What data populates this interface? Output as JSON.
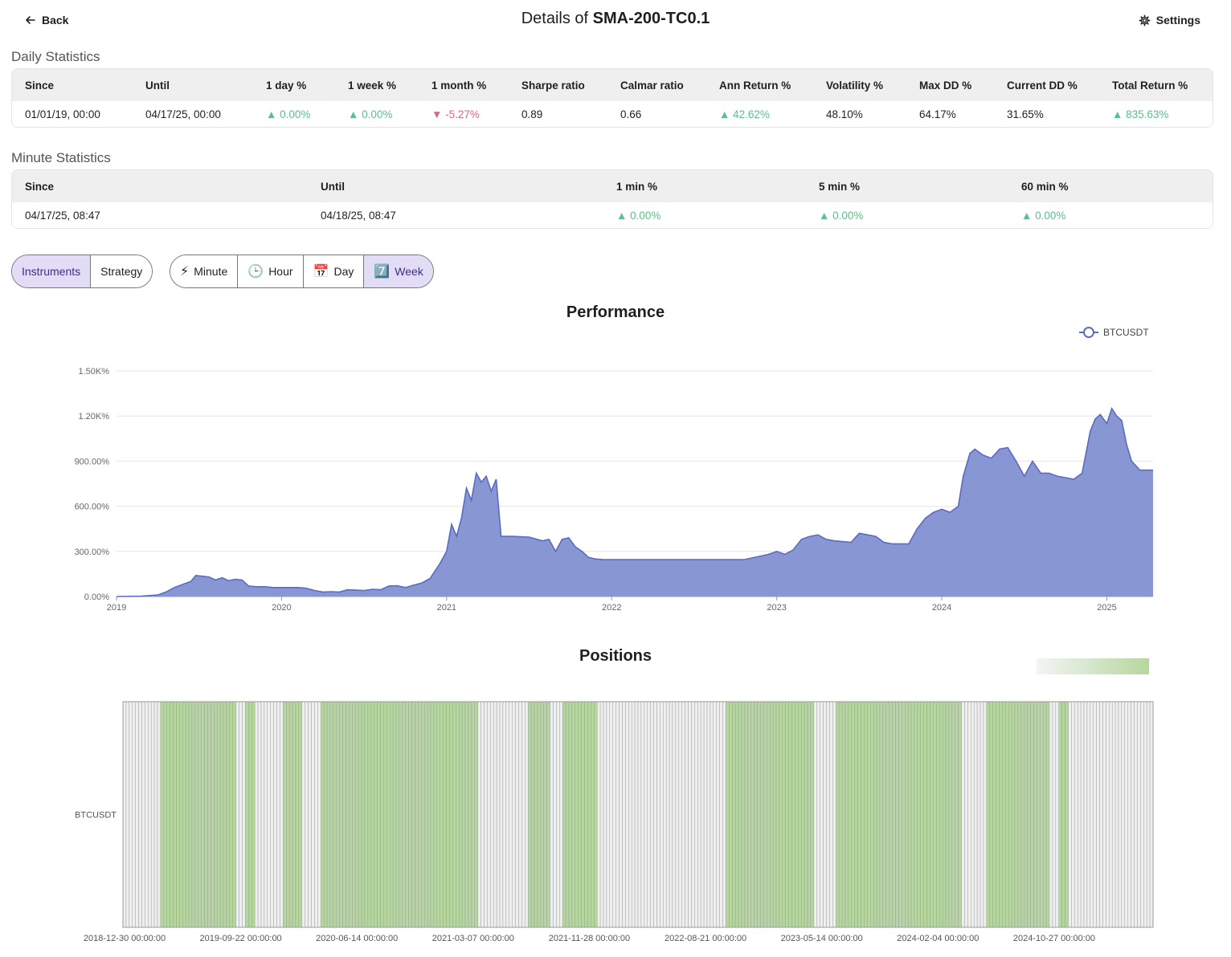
{
  "header": {
    "back_label": "Back",
    "title_prefix": "Details of",
    "title_name": "SMA-200-TC0.1",
    "settings_label": "Settings"
  },
  "daily": {
    "title": "Daily Statistics",
    "headers": [
      "Since",
      "Until",
      "1 day %",
      "1 week %",
      "1 month %",
      "Sharpe ratio",
      "Calmar ratio",
      "Ann Return %",
      "Volatility %",
      "Max DD %",
      "Current DD %",
      "Total Return %"
    ],
    "values": [
      {
        "text": "01/01/19, 00:00",
        "trend": ""
      },
      {
        "text": "04/17/25, 00:00",
        "trend": ""
      },
      {
        "text": "▲ 0.00%",
        "trend": "up"
      },
      {
        "text": "▲ 0.00%",
        "trend": "up"
      },
      {
        "text": "▼ -5.27%",
        "trend": "down"
      },
      {
        "text": "0.89",
        "trend": ""
      },
      {
        "text": "0.66",
        "trend": ""
      },
      {
        "text": "▲ 42.62%",
        "trend": "up"
      },
      {
        "text": "48.10%",
        "trend": ""
      },
      {
        "text": "64.17%",
        "trend": ""
      },
      {
        "text": "31.65%",
        "trend": ""
      },
      {
        "text": "▲ 835.63%",
        "trend": "up"
      }
    ]
  },
  "minute": {
    "title": "Minute Statistics",
    "headers": [
      "Since",
      "Until",
      "1 min %",
      "5 min %",
      "60 min %"
    ],
    "values": [
      {
        "text": "04/17/25, 08:47",
        "trend": ""
      },
      {
        "text": "04/18/25, 08:47",
        "trend": ""
      },
      {
        "text": "▲ 0.00%",
        "trend": "up"
      },
      {
        "text": "▲ 0.00%",
        "trend": "up"
      },
      {
        "text": "▲ 0.00%",
        "trend": "up"
      }
    ]
  },
  "view_toggle": {
    "items": [
      {
        "label": "Instruments",
        "active": true
      },
      {
        "label": "Strategy",
        "active": false
      }
    ]
  },
  "interval_toggle": {
    "items": [
      {
        "label": "Minute",
        "icon": "⚡",
        "icon_name": "lightning-icon",
        "active": false
      },
      {
        "label": "Hour",
        "icon": "🕒",
        "icon_name": "clock-icon",
        "active": false
      },
      {
        "label": "Day",
        "icon": "📅",
        "icon_name": "calendar-icon",
        "active": false
      },
      {
        "label": "Week",
        "icon": "7️⃣",
        "icon_name": "seven-icon",
        "active": true
      }
    ]
  },
  "colors": {
    "accent": "#5b6bbf",
    "area_fill": "#8896d4",
    "position_long": "#b5d79f",
    "position_flat": "#efefef",
    "positive": "#5bbf8a",
    "negative": "#e0667c"
  },
  "chart_data": [
    {
      "type": "area",
      "title": "Performance",
      "legend": "top-right",
      "grid": true,
      "y_unit": "%",
      "ylim": [
        0,
        1500
      ],
      "yticks": [
        "0.00%",
        "300.00%",
        "600.00%",
        "900.00%",
        "1.20K%",
        "1.50K%"
      ],
      "xticks": [
        "2019",
        "2020",
        "2021",
        "2022",
        "2023",
        "2024",
        "2025"
      ],
      "series": [
        {
          "name": "BTCUSDT",
          "points": [
            [
              2019.0,
              0
            ],
            [
              2019.15,
              2
            ],
            [
              2019.25,
              10
            ],
            [
              2019.3,
              30
            ],
            [
              2019.35,
              60
            ],
            [
              2019.4,
              80
            ],
            [
              2019.45,
              100
            ],
            [
              2019.48,
              140
            ],
            [
              2019.52,
              135
            ],
            [
              2019.56,
              130
            ],
            [
              2019.6,
              110
            ],
            [
              2019.64,
              125
            ],
            [
              2019.68,
              105
            ],
            [
              2019.72,
              115
            ],
            [
              2019.76,
              110
            ],
            [
              2019.8,
              70
            ],
            [
              2019.85,
              65
            ],
            [
              2019.9,
              65
            ],
            [
              2019.95,
              60
            ],
            [
              2020.0,
              60
            ],
            [
              2020.05,
              60
            ],
            [
              2020.1,
              60
            ],
            [
              2020.15,
              55
            ],
            [
              2020.2,
              40
            ],
            [
              2020.25,
              30
            ],
            [
              2020.3,
              32
            ],
            [
              2020.35,
              30
            ],
            [
              2020.4,
              45
            ],
            [
              2020.45,
              42
            ],
            [
              2020.5,
              40
            ],
            [
              2020.55,
              48
            ],
            [
              2020.6,
              45
            ],
            [
              2020.65,
              70
            ],
            [
              2020.7,
              72
            ],
            [
              2020.75,
              60
            ],
            [
              2020.8,
              75
            ],
            [
              2020.85,
              90
            ],
            [
              2020.9,
              120
            ],
            [
              2020.93,
              170
            ],
            [
              2020.96,
              220
            ],
            [
              2021.0,
              300
            ],
            [
              2021.03,
              480
            ],
            [
              2021.06,
              400
            ],
            [
              2021.09,
              520
            ],
            [
              2021.12,
              720
            ],
            [
              2021.15,
              640
            ],
            [
              2021.18,
              820
            ],
            [
              2021.21,
              760
            ],
            [
              2021.24,
              800
            ],
            [
              2021.27,
              700
            ],
            [
              2021.3,
              780
            ],
            [
              2021.33,
              400
            ],
            [
              2021.4,
              400
            ],
            [
              2021.5,
              395
            ],
            [
              2021.58,
              370
            ],
            [
              2021.62,
              380
            ],
            [
              2021.66,
              300
            ],
            [
              2021.7,
              380
            ],
            [
              2021.74,
              390
            ],
            [
              2021.78,
              330
            ],
            [
              2021.82,
              300
            ],
            [
              2021.86,
              260
            ],
            [
              2021.9,
              250
            ],
            [
              2021.95,
              245
            ],
            [
              2022.1,
              245
            ],
            [
              2022.5,
              245
            ],
            [
              2022.8,
              245
            ],
            [
              2022.95,
              280
            ],
            [
              2023.0,
              300
            ],
            [
              2023.05,
              280
            ],
            [
              2023.1,
              310
            ],
            [
              2023.15,
              380
            ],
            [
              2023.2,
              400
            ],
            [
              2023.25,
              410
            ],
            [
              2023.3,
              380
            ],
            [
              2023.35,
              370
            ],
            [
              2023.4,
              365
            ],
            [
              2023.45,
              360
            ],
            [
              2023.5,
              420
            ],
            [
              2023.55,
              410
            ],
            [
              2023.6,
              400
            ],
            [
              2023.65,
              360
            ],
            [
              2023.7,
              350
            ],
            [
              2023.8,
              350
            ],
            [
              2023.85,
              450
            ],
            [
              2023.9,
              520
            ],
            [
              2023.95,
              560
            ],
            [
              2024.0,
              580
            ],
            [
              2024.05,
              560
            ],
            [
              2024.1,
              600
            ],
            [
              2024.13,
              800
            ],
            [
              2024.17,
              950
            ],
            [
              2024.2,
              980
            ],
            [
              2024.25,
              940
            ],
            [
              2024.3,
              920
            ],
            [
              2024.35,
              980
            ],
            [
              2024.4,
              990
            ],
            [
              2024.45,
              900
            ],
            [
              2024.5,
              800
            ],
            [
              2024.55,
              900
            ],
            [
              2024.6,
              820
            ],
            [
              2024.65,
              820
            ],
            [
              2024.7,
              800
            ],
            [
              2024.75,
              790
            ],
            [
              2024.8,
              780
            ],
            [
              2024.85,
              820
            ],
            [
              2024.9,
              1100
            ],
            [
              2024.93,
              1180
            ],
            [
              2024.96,
              1210
            ],
            [
              2025.0,
              1150
            ],
            [
              2025.03,
              1250
            ],
            [
              2025.06,
              1200
            ],
            [
              2025.09,
              1170
            ],
            [
              2025.12,
              1010
            ],
            [
              2025.15,
              900
            ],
            [
              2025.2,
              840
            ],
            [
              2025.28,
              840
            ]
          ]
        }
      ]
    },
    {
      "type": "heatmap",
      "title": "Positions",
      "rows": [
        "BTCUSDT"
      ],
      "xticks": [
        "2018-12-30 00:00:00",
        "2019-09-22 00:00:00",
        "2020-06-14 00:00:00",
        "2021-03-07 00:00:00",
        "2021-11-28 00:00:00",
        "2022-08-21 00:00:00",
        "2023-05-14 00:00:00",
        "2024-02-04 00:00:00",
        "2024-10-27 00:00:00"
      ],
      "legend": "top-right",
      "weeks": 328,
      "long_ranges": [
        [
          12,
          35
        ],
        [
          39,
          41
        ],
        [
          51,
          56
        ],
        [
          63,
          112
        ],
        [
          129,
          135
        ],
        [
          140,
          150
        ],
        [
          192,
          219
        ],
        [
          227,
          262
        ],
        [
          263,
          266
        ],
        [
          275,
          294
        ],
        [
          298,
          300
        ]
      ]
    }
  ]
}
